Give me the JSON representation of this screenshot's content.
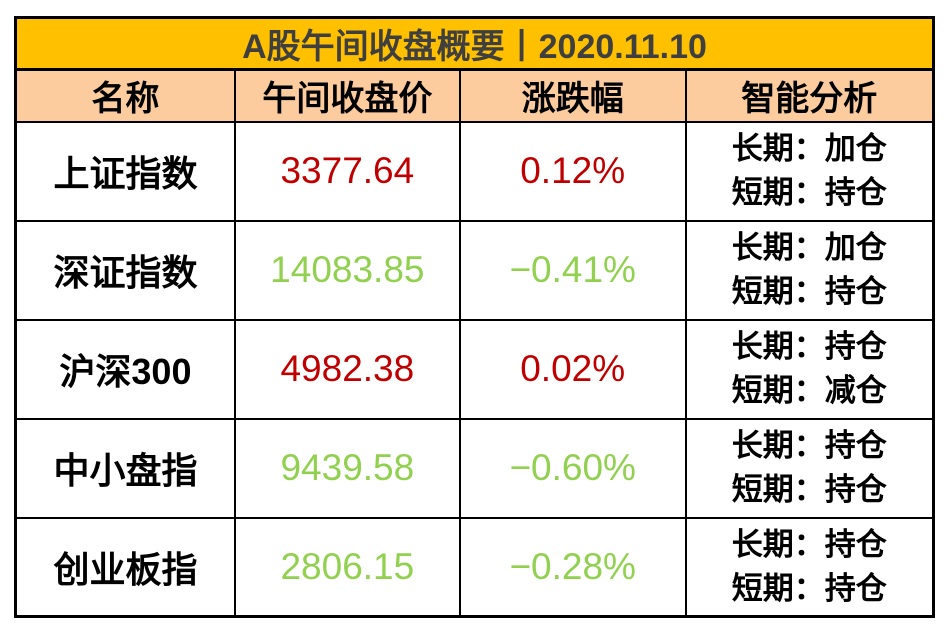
{
  "title": "A股午间收盘概要丨2020.11.10",
  "columns": {
    "name": "名称",
    "close": "午间收盘价",
    "change": "涨跌幅",
    "analysis": "智能分析"
  },
  "rows": [
    {
      "name": "上证指数",
      "price": "3377.64",
      "change": "0.12%",
      "trend": "up",
      "long": "长期：加仓",
      "short": "短期：持仓"
    },
    {
      "name": "深证指数",
      "price": "14083.85",
      "change": "−0.41%",
      "trend": "down",
      "long": "长期：加仓",
      "short": "短期：持仓"
    },
    {
      "name": "沪深300",
      "price": "4982.38",
      "change": "0.02%",
      "trend": "up",
      "long": "长期：持仓",
      "short": "短期：减仓"
    },
    {
      "name": "中小盘指",
      "price": "9439.58",
      "change": "−0.60%",
      "trend": "down",
      "long": "长期：持仓",
      "short": "短期：持仓"
    },
    {
      "name": "创业板指",
      "price": "2806.15",
      "change": "−0.28%",
      "trend": "down",
      "long": "长期：持仓",
      "short": "短期：持仓"
    }
  ],
  "colors": {
    "title_background": "#FFC000",
    "header_background": "#FCCB9E",
    "up_text": "#C00000",
    "down_text": "#92D050",
    "title_text": "#3F3F3F",
    "body_text": "#000000",
    "border": "#000000"
  },
  "chart_data": {
    "type": "table",
    "title": "A股午间收盘概要丨2020.11.10",
    "date": "2020.11.10",
    "columns": [
      "名称",
      "午间收盘价",
      "涨跌幅",
      "智能分析"
    ],
    "rows": [
      {
        "name": "上证指数",
        "close": 3377.64,
        "change_pct": 0.12,
        "long_term": "加仓",
        "short_term": "持仓"
      },
      {
        "name": "深证指数",
        "close": 14083.85,
        "change_pct": -0.41,
        "long_term": "加仓",
        "short_term": "持仓"
      },
      {
        "name": "沪深300",
        "close": 4982.38,
        "change_pct": 0.02,
        "long_term": "持仓",
        "short_term": "减仓"
      },
      {
        "name": "中小盘指",
        "close": 9439.58,
        "change_pct": -0.6,
        "long_term": "持仓",
        "short_term": "持仓"
      },
      {
        "name": "创业板指",
        "close": 2806.15,
        "change_pct": -0.28,
        "long_term": "持仓",
        "short_term": "持仓"
      }
    ],
    "legend": "red = up (rise), green = down (fall)"
  }
}
